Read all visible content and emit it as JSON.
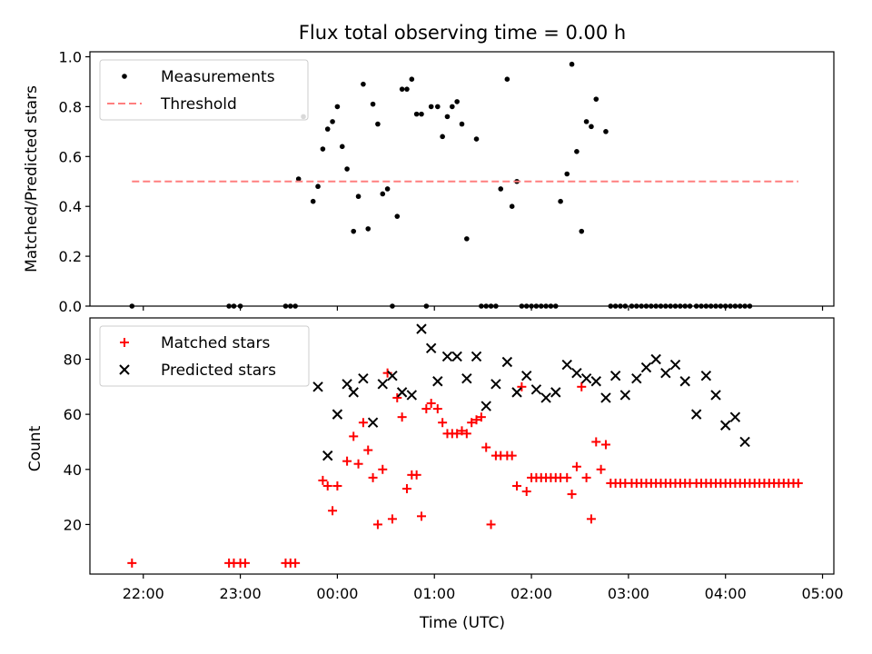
{
  "chart_data": [
    {
      "type": "scatter",
      "title": "Flux total observing time = 0.00 h",
      "xlabel": "",
      "ylabel": "Matched/Predicted stars",
      "xlim": [
        "21:27",
        "05:07"
      ],
      "ylim": [
        0,
        1.02
      ],
      "y_ticks": [
        "0.0",
        "0.2",
        "0.4",
        "0.6",
        "0.8",
        "1.0"
      ],
      "legend_position": "top-left",
      "grid": false,
      "series": [
        {
          "name": "Measurements",
          "color": "#000000",
          "marker": "dot",
          "x": [
            "21:53",
            "22:53",
            "22:56",
            "23:00",
            "23:28",
            "23:31",
            "23:34",
            "23:36",
            "23:39",
            "23:45",
            "23:48",
            "23:51",
            "23:54",
            "23:57",
            "24:00",
            "24:03",
            "24:06",
            "24:10",
            "24:13",
            "24:16",
            "24:19",
            "24:22",
            "24:25",
            "24:28",
            "24:31",
            "24:34",
            "24:37",
            "24:40",
            "24:43",
            "24:46",
            "24:49",
            "24:52",
            "24:55",
            "24:58",
            "25:02",
            "25:05",
            "25:08",
            "25:11",
            "25:14",
            "25:17",
            "25:20",
            "25:26",
            "25:29",
            "25:32",
            "25:35",
            "25:38",
            "25:41",
            "25:45",
            "25:48",
            "25:51",
            "25:54",
            "25:57",
            "26:00",
            "26:03",
            "26:06",
            "26:09",
            "26:12",
            "26:15",
            "26:18",
            "26:22",
            "26:25",
            "26:28",
            "26:31",
            "26:34",
            "26:37",
            "26:40",
            "26:46",
            "26:49",
            "26:52",
            "26:55",
            "26:58",
            "27:02",
            "27:05",
            "27:08",
            "27:11",
            "27:14",
            "27:17",
            "27:20",
            "27:23",
            "27:26",
            "27:29",
            "27:32",
            "27:35",
            "27:38",
            "27:42",
            "27:45",
            "27:48",
            "27:51",
            "27:54",
            "27:57",
            "28:00",
            "28:03",
            "28:06",
            "28:09",
            "28:12",
            "28:15"
          ],
          "y": [
            0,
            0,
            0,
            0,
            0,
            0,
            0,
            0.51,
            0.76,
            0.42,
            0.48,
            0.63,
            0.71,
            0.74,
            0.8,
            0.64,
            0.55,
            0.3,
            0.44,
            0.89,
            0.31,
            0.81,
            0.73,
            0.45,
            0.47,
            0,
            0.36,
            0.87,
            0.87,
            0.91,
            0.77,
            0.77,
            0,
            0.8,
            0.8,
            0.68,
            0.76,
            0.8,
            0.82,
            0.73,
            0.27,
            0.67,
            0,
            0,
            0,
            0,
            0.47,
            0.91,
            0.4,
            0.5,
            0,
            0,
            0,
            0,
            0,
            0,
            0,
            0,
            0.42,
            0.53,
            0.97,
            0.62,
            0.3,
            0.74,
            0.72,
            0.83,
            0.7,
            0,
            0,
            0,
            0,
            0,
            0,
            0,
            0,
            0,
            0,
            0,
            0,
            0,
            0,
            0,
            0,
            0,
            0,
            0,
            0,
            0,
            0,
            0,
            0,
            0,
            0,
            0,
            0,
            0
          ]
        },
        {
          "name": "Threshold",
          "color": "#ff7f7f",
          "marker": "dashed-line",
          "x": [
            "21:53",
            "28:45"
          ],
          "y": [
            0.5,
            0.5
          ]
        }
      ]
    },
    {
      "type": "scatter",
      "title": "",
      "xlabel": "Time (UTC)",
      "ylabel": "Count",
      "xlim": [
        "21:27",
        "05:07"
      ],
      "ylim": [
        2,
        95
      ],
      "y_ticks": [
        "20",
        "40",
        "60",
        "80"
      ],
      "x_ticks": [
        "22:00",
        "23:00",
        "00:00",
        "01:00",
        "02:00",
        "03:00",
        "04:00",
        "05:00"
      ],
      "legend_position": "top-left",
      "grid": false,
      "series": [
        {
          "name": "Matched stars",
          "color": "#ff0000",
          "marker": "plus",
          "x": [
            "21:53",
            "22:53",
            "22:56",
            "23:00",
            "23:03",
            "23:28",
            "23:31",
            "23:34",
            "23:51",
            "23:54",
            "23:57",
            "24:00",
            "24:06",
            "24:10",
            "24:13",
            "24:16",
            "24:19",
            "24:22",
            "24:25",
            "24:28",
            "24:31",
            "24:34",
            "24:37",
            "24:40",
            "24:43",
            "24:46",
            "24:49",
            "24:52",
            "24:55",
            "24:58",
            "25:02",
            "25:05",
            "25:08",
            "25:11",
            "25:14",
            "25:17",
            "25:20",
            "25:23",
            "25:26",
            "25:29",
            "25:32",
            "25:35",
            "25:38",
            "25:41",
            "25:45",
            "25:48",
            "25:51",
            "25:54",
            "25:57",
            "26:00",
            "26:03",
            "26:06",
            "26:09",
            "26:12",
            "26:15",
            "26:18",
            "26:22",
            "26:25",
            "26:28",
            "26:31",
            "26:34",
            "26:37",
            "26:40",
            "26:43",
            "26:46",
            "26:49",
            "26:52",
            "26:55",
            "26:58",
            "27:02",
            "27:05",
            "27:08",
            "27:11",
            "27:14",
            "27:17",
            "27:20",
            "27:23",
            "27:26",
            "27:29",
            "27:32",
            "27:35",
            "27:38",
            "27:42",
            "27:45",
            "27:48",
            "27:51",
            "27:54",
            "27:57",
            "28:00",
            "28:03",
            "28:06",
            "28:09",
            "28:12",
            "28:15",
            "28:18",
            "28:21",
            "28:24",
            "28:27",
            "28:30",
            "28:33",
            "28:36",
            "28:39",
            "28:42",
            "28:45"
          ],
          "y": [
            6,
            6,
            6,
            6,
            6,
            6,
            6,
            6,
            36,
            34,
            25,
            34,
            43,
            52,
            42,
            57,
            47,
            37,
            20,
            40,
            75,
            22,
            66,
            59,
            33,
            38,
            38,
            23,
            62,
            64,
            62,
            57,
            53,
            53,
            53,
            54,
            53,
            57,
            58,
            59,
            48,
            20,
            45,
            45,
            45,
            45,
            34,
            70,
            32,
            37,
            37,
            37,
            37,
            37,
            37,
            37,
            37,
            31,
            41,
            70,
            37,
            22,
            50,
            40,
            49,
            35,
            35,
            35,
            35,
            35,
            35,
            35,
            35,
            35,
            35,
            35,
            35,
            35,
            35,
            35,
            35,
            35,
            35,
            35,
            35,
            35,
            35,
            35,
            35,
            35,
            35,
            35,
            35,
            35,
            35,
            35,
            35,
            35,
            35,
            35,
            35,
            35,
            35,
            35
          ]
        },
        {
          "name": "Predicted stars",
          "color": "#000000",
          "marker": "x",
          "x": [
            "23:48",
            "23:54",
            "24:00",
            "24:06",
            "24:10",
            "24:16",
            "24:22",
            "24:28",
            "24:34",
            "24:40",
            "24:46",
            "24:52",
            "24:58",
            "25:02",
            "25:08",
            "25:14",
            "25:20",
            "25:26",
            "25:32",
            "25:38",
            "25:45",
            "25:51",
            "25:57",
            "26:03",
            "26:09",
            "26:15",
            "26:22",
            "26:28",
            "26:34",
            "26:40",
            "26:46",
            "26:52",
            "26:58",
            "27:05",
            "27:11",
            "27:17",
            "27:23",
            "27:29",
            "27:35",
            "27:42",
            "27:48",
            "27:54",
            "28:00",
            "28:06",
            "28:12"
          ],
          "y": [
            70,
            45,
            60,
            71,
            68,
            73,
            57,
            71,
            74,
            68,
            67,
            91,
            84,
            72,
            81,
            81,
            73,
            81,
            63,
            71,
            79,
            68,
            74,
            69,
            66,
            68,
            78,
            75,
            73,
            72,
            66,
            74,
            67,
            73,
            77,
            80,
            75,
            78,
            72,
            60,
            74,
            67,
            56,
            59,
            50
          ]
        }
      ]
    }
  ]
}
